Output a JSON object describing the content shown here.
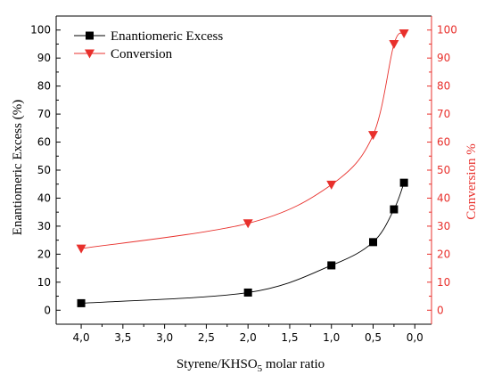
{
  "chart_data": {
    "type": "line",
    "xlabel_main": "Styrene/KHSO",
    "xlabel_sub": "5",
    "xlabel_tail": " molar ratio",
    "ylabel_left": "Enantiomeric Excess (%)",
    "ylabel_right": "Conversion %",
    "xlim": [
      4.3,
      -0.2
    ],
    "ylim_left": [
      -5,
      105
    ],
    "ylim_right": [
      -5,
      105
    ],
    "x_ticks": [
      "4,0",
      "3,5",
      "3,0",
      "2,5",
      "2,0",
      "1,5",
      "1,0",
      "0,5",
      "0,0"
    ],
    "x_tick_values": [
      4.0,
      3.5,
      3.0,
      2.5,
      2.0,
      1.5,
      1.0,
      0.5,
      0.0
    ],
    "y_ticks": [
      "0",
      "10",
      "20",
      "30",
      "40",
      "50",
      "60",
      "70",
      "80",
      "90",
      "100"
    ],
    "y_tick_values": [
      0,
      10,
      20,
      30,
      40,
      50,
      60,
      70,
      80,
      90,
      100
    ],
    "legend_position": "top-left",
    "grid": false,
    "series": [
      {
        "name": "Enantiomeric Excess",
        "axis": "left",
        "marker": "square",
        "color": "#000000",
        "x": [
          4.0,
          2.0,
          1.0,
          0.5,
          0.25,
          0.13
        ],
        "y": [
          2.5,
          6.3,
          16.0,
          24.3,
          36.0,
          45.5
        ]
      },
      {
        "name": "Conversion",
        "axis": "right",
        "marker": "triangle-down",
        "color": "#e8302c",
        "x": [
          4.0,
          2.0,
          1.0,
          0.5,
          0.25,
          0.13
        ],
        "y": [
          22.0,
          31.0,
          44.8,
          62.5,
          95.0,
          98.8
        ]
      }
    ]
  }
}
